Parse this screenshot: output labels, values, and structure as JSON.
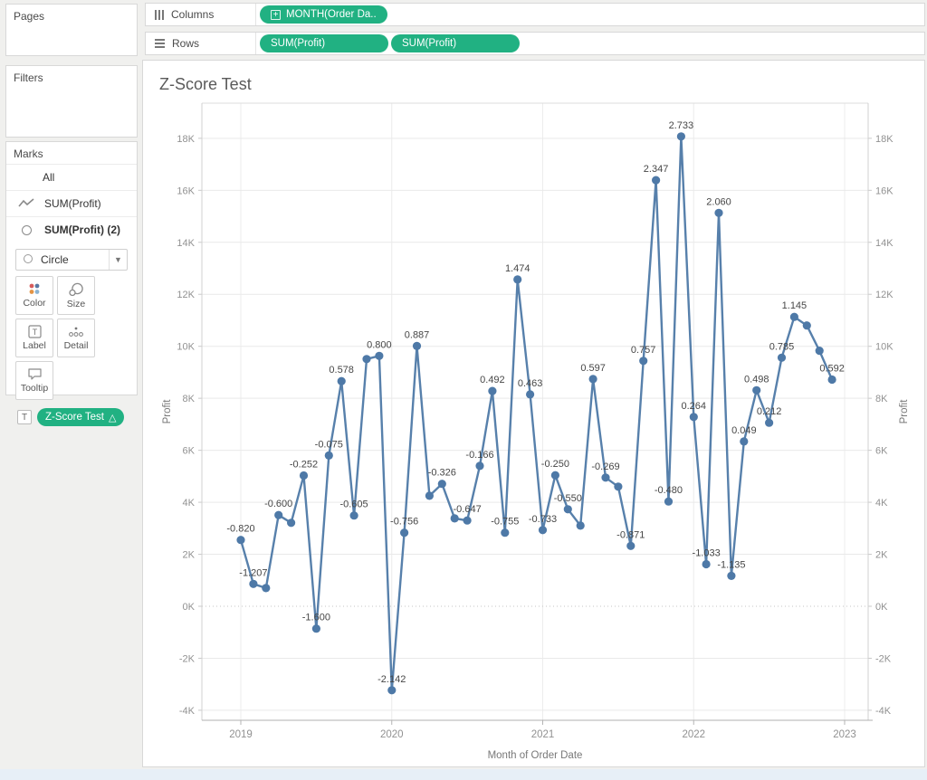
{
  "shelves": {
    "columns": {
      "label": "Columns",
      "pills": [
        {
          "text": "MONTH(Order Da..",
          "expand_symbol": "+"
        }
      ]
    },
    "rows": {
      "label": "Rows",
      "pills": [
        {
          "text": "SUM(Profit)"
        },
        {
          "text": "SUM(Profit)"
        }
      ]
    }
  },
  "sidebar": {
    "pages_title": "Pages",
    "filters_title": "Filters",
    "marks": {
      "title": "Marks",
      "rows": [
        {
          "label": "All",
          "icon": null
        },
        {
          "label": "SUM(Profit)",
          "icon": "line"
        },
        {
          "label": "SUM(Profit) (2)",
          "icon": "circle",
          "bold": true
        }
      ],
      "mark_type": "Circle",
      "buttons": [
        {
          "label": "Color"
        },
        {
          "label": "Size"
        },
        {
          "label": "Label"
        },
        {
          "label": "Detail"
        },
        {
          "label": "Tooltip"
        }
      ],
      "label_shelf": {
        "icon_text": "T",
        "pill_text": "Z-Score Test",
        "pill_symbol": "△"
      }
    }
  },
  "colors": {
    "pill_green": "#21b182",
    "line_blue": "#4e79a7",
    "point_label": "#464646",
    "tick_text": "#919191",
    "axis_title_text": "#787878"
  },
  "chart_data": {
    "type": "line",
    "title": "Z-Score Test",
    "xlabel": "Month of Order Date",
    "ylabel_left": "Profit",
    "ylabel_right": "Profit",
    "legend_position": "none",
    "grid": true,
    "ylim_k": [
      -4.4,
      19.4
    ],
    "y_unit": "thousands of profit dollars",
    "y_ticks": [
      {
        "value": 18,
        "label": "18K"
      },
      {
        "value": 16,
        "label": "16K"
      },
      {
        "value": 14,
        "label": "14K"
      },
      {
        "value": 12,
        "label": "12K"
      },
      {
        "value": 10,
        "label": "10K"
      },
      {
        "value": 8,
        "label": "8K"
      },
      {
        "value": 6,
        "label": "6K"
      },
      {
        "value": 4,
        "label": "4K"
      },
      {
        "value": 2,
        "label": "2K"
      },
      {
        "value": 0,
        "label": "0K"
      },
      {
        "value": -2,
        "label": "-2K"
      },
      {
        "value": -4,
        "label": "-4K"
      }
    ],
    "x_ticks": [
      {
        "label": "2019",
        "month_index": 0
      },
      {
        "label": "2020",
        "month_index": 12
      },
      {
        "label": "2021",
        "month_index": 24
      },
      {
        "label": "2022",
        "month_index": 36
      },
      {
        "label": "2023",
        "month_index": 48
      }
    ],
    "series": [
      {
        "name": "SUM(Profit) with Z-Score Test labels",
        "points": [
          {
            "month": "Jan 2019",
            "profit_k": 2.55,
            "z_label": "-0.820"
          },
          {
            "month": "Feb 2019",
            "profit_k": 0.86,
            "z_label": "-1.207"
          },
          {
            "month": "Mar 2019",
            "profit_k": 0.7,
            "z_label": null
          },
          {
            "month": "Apr 2019",
            "profit_k": 3.51,
            "z_label": "-0.600"
          },
          {
            "month": "May 2019",
            "profit_k": 3.21,
            "z_label": null
          },
          {
            "month": "Jun 2019",
            "profit_k": 5.03,
            "z_label": "-0.252"
          },
          {
            "month": "Jul 2019",
            "profit_k": -0.86,
            "z_label": "-1.600"
          },
          {
            "month": "Aug 2019",
            "profit_k": 5.8,
            "z_label": "-0.075"
          },
          {
            "month": "Sep 2019",
            "profit_k": 8.66,
            "z_label": "0.578"
          },
          {
            "month": "Oct 2019",
            "profit_k": 3.49,
            "z_label": "-0.605"
          },
          {
            "month": "Nov 2019",
            "profit_k": 9.51,
            "z_label": null
          },
          {
            "month": "Dec 2019",
            "profit_k": 9.63,
            "z_label": "0.800"
          },
          {
            "month": "Jan 2020",
            "profit_k": -3.23,
            "z_label": "-2.142"
          },
          {
            "month": "Feb 2020",
            "profit_k": 2.83,
            "z_label": "-0.756"
          },
          {
            "month": "Mar 2020",
            "profit_k": 10.01,
            "z_label": "0.887"
          },
          {
            "month": "Apr 2020",
            "profit_k": 4.25,
            "z_label": null
          },
          {
            "month": "May 2020",
            "profit_k": 4.71,
            "z_label": "-0.326"
          },
          {
            "month": "Jun 2020",
            "profit_k": 3.38,
            "z_label": null
          },
          {
            "month": "Jul 2020",
            "profit_k": 3.3,
            "z_label": "-0.647"
          },
          {
            "month": "Aug 2020",
            "profit_k": 5.4,
            "z_label": "-0.166"
          },
          {
            "month": "Sep 2020",
            "profit_k": 8.28,
            "z_label": "0.492"
          },
          {
            "month": "Oct 2020",
            "profit_k": 2.83,
            "z_label": "-0.755"
          },
          {
            "month": "Nov 2020",
            "profit_k": 12.57,
            "z_label": "1.474"
          },
          {
            "month": "Dec 2020",
            "profit_k": 8.15,
            "z_label": "0.463"
          },
          {
            "month": "Jan 2021",
            "profit_k": 2.93,
            "z_label": "-0.733"
          },
          {
            "month": "Feb 2021",
            "profit_k": 5.04,
            "z_label": "-0.250"
          },
          {
            "month": "Mar 2021",
            "profit_k": 3.73,
            "z_label": "-0.550"
          },
          {
            "month": "Apr 2021",
            "profit_k": 3.1,
            "z_label": null
          },
          {
            "month": "May 2021",
            "profit_k": 8.74,
            "z_label": "0.597"
          },
          {
            "month": "Jun 2021",
            "profit_k": 4.95,
            "z_label": "-0.269"
          },
          {
            "month": "Jul 2021",
            "profit_k": 4.6,
            "z_label": null
          },
          {
            "month": "Aug 2021",
            "profit_k": 2.32,
            "z_label": "-0.871"
          },
          {
            "month": "Sep 2021",
            "profit_k": 9.44,
            "z_label": "0.757"
          },
          {
            "month": "Oct 2021",
            "profit_k": 16.39,
            "z_label": "2.347"
          },
          {
            "month": "Nov 2021",
            "profit_k": 4.03,
            "z_label": "-0.480"
          },
          {
            "month": "Dec 2021",
            "profit_k": 18.07,
            "z_label": "2.733"
          },
          {
            "month": "Jan 2022",
            "profit_k": 7.28,
            "z_label": "0.264"
          },
          {
            "month": "Feb 2022",
            "profit_k": 1.62,
            "z_label": "-1.033"
          },
          {
            "month": "Mar 2022",
            "profit_k": 15.13,
            "z_label": "2.060"
          },
          {
            "month": "Apr 2022",
            "profit_k": 1.17,
            "z_label": "-1.135"
          },
          {
            "month": "May 2022",
            "profit_k": 6.34,
            "z_label": "0.049"
          },
          {
            "month": "Jun 2022",
            "profit_k": 8.31,
            "z_label": "0.498"
          },
          {
            "month": "Jul 2022",
            "profit_k": 7.06,
            "z_label": "0.212"
          },
          {
            "month": "Aug 2022",
            "profit_k": 9.56,
            "z_label": "0.785"
          },
          {
            "month": "Sep 2022",
            "profit_k": 11.13,
            "z_label": "1.145"
          },
          {
            "month": "Oct 2022",
            "profit_k": 10.8,
            "z_label": null
          },
          {
            "month": "Nov 2022",
            "profit_k": 9.83,
            "z_label": null
          },
          {
            "month": "Dec 2022",
            "profit_k": 8.72,
            "z_label": "0.592"
          }
        ]
      }
    ]
  }
}
